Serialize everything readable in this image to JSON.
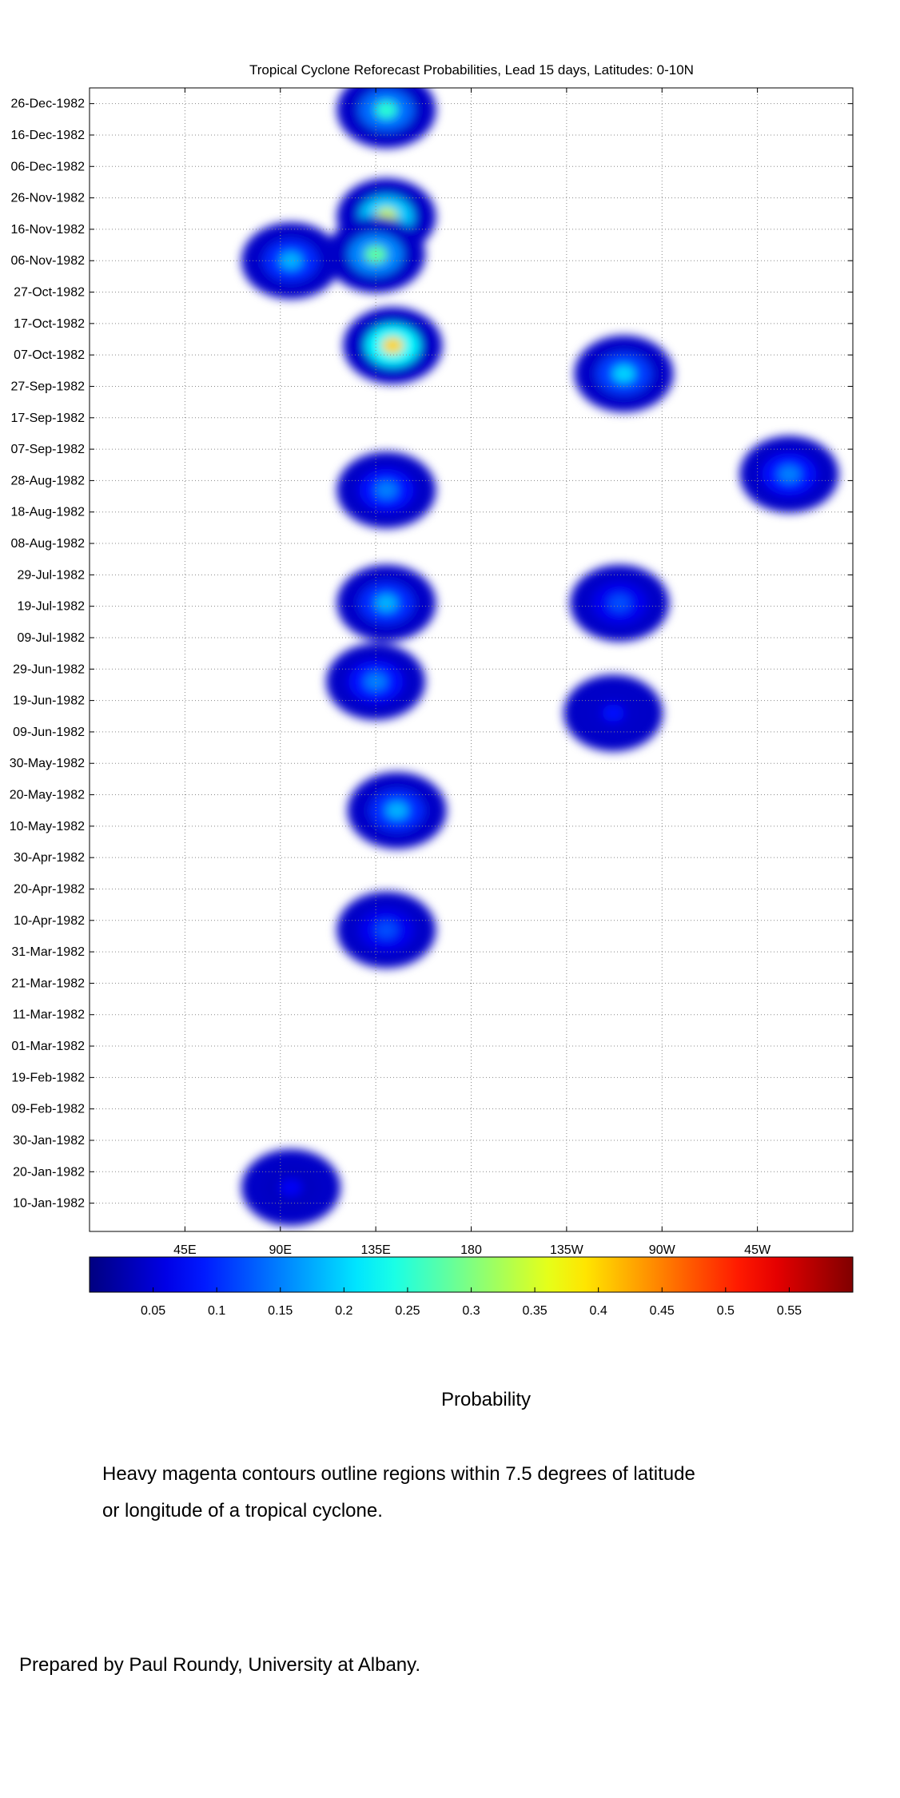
{
  "chart_data": {
    "type": "heatmap",
    "title": "Tropical Cyclone Reforecast Probabilities, Lead 15 days, Latitudes: 0-10N",
    "xlabel": "",
    "ylabel": "",
    "x_tick_labels": [
      "45E",
      "90E",
      "135E",
      "180",
      "135W",
      "90W",
      "45W"
    ],
    "y_tick_labels": [
      "26-Dec-1982",
      "16-Dec-1982",
      "06-Dec-1982",
      "26-Nov-1982",
      "16-Nov-1982",
      "06-Nov-1982",
      "27-Oct-1982",
      "17-Oct-1982",
      "07-Oct-1982",
      "27-Sep-1982",
      "17-Sep-1982",
      "07-Sep-1982",
      "28-Aug-1982",
      "18-Aug-1982",
      "08-Aug-1982",
      "29-Jul-1982",
      "19-Jul-1982",
      "09-Jul-1982",
      "29-Jun-1982",
      "19-Jun-1982",
      "09-Jun-1982",
      "30-May-1982",
      "20-May-1982",
      "10-May-1982",
      "30-Apr-1982",
      "20-Apr-1982",
      "10-Apr-1982",
      "31-Mar-1982",
      "21-Mar-1982",
      "11-Mar-1982",
      "01-Mar-1982",
      "19-Feb-1982",
      "09-Feb-1982",
      "30-Jan-1982",
      "20-Jan-1982",
      "10-Jan-1982"
    ],
    "x_range": [
      "0E",
      "360E"
    ],
    "y_range": [
      "01-Jan-1982",
      "31-Dec-1982"
    ],
    "grid": true,
    "colorbar": {
      "label": "Probability",
      "range": [
        0,
        0.6
      ],
      "tick_labels": [
        "0.05",
        "0.1",
        "0.15",
        "0.2",
        "0.25",
        "0.3",
        "0.35",
        "0.4",
        "0.45",
        "0.5",
        "0.55"
      ],
      "tick_values": [
        0.05,
        0.1,
        0.15,
        0.2,
        0.25,
        0.3,
        0.35,
        0.4,
        0.45,
        0.5,
        0.55
      ],
      "colormap": "jet"
    },
    "contour_color": "#ff33ff",
    "probability_regions": [
      {
        "lon": 140,
        "date": "1982-11-20",
        "peak": 0.35
      },
      {
        "lon": 143,
        "date": "1982-10-10",
        "peak": 0.4
      },
      {
        "lon": 140,
        "date": "1982-12-24",
        "peak": 0.25
      },
      {
        "lon": 135,
        "date": "1982-11-08",
        "peak": 0.28
      },
      {
        "lon": 95,
        "date": "1982-11-06",
        "peak": 0.18
      },
      {
        "lon": 140,
        "date": "1982-08-25",
        "peak": 0.15
      },
      {
        "lon": 140,
        "date": "1982-07-20",
        "peak": 0.18
      },
      {
        "lon": 135,
        "date": "1982-06-25",
        "peak": 0.15
      },
      {
        "lon": 145,
        "date": "1982-05-15",
        "peak": 0.18
      },
      {
        "lon": 140,
        "date": "1982-04-07",
        "peak": 0.12
      },
      {
        "lon": 252,
        "date": "1982-10-01",
        "peak": 0.2
      },
      {
        "lon": 250,
        "date": "1982-07-20",
        "peak": 0.12
      },
      {
        "lon": 247,
        "date": "1982-06-15",
        "peak": 0.08
      },
      {
        "lon": 330,
        "date": "1982-08-30",
        "peak": 0.15
      },
      {
        "lon": 95,
        "date": "1982-01-15",
        "peak": 0.07
      }
    ]
  },
  "annotations": {
    "colorbar_title": "Probability",
    "note_line1": "Heavy magenta contours outline regions within 7.5 degrees of latitude",
    "note_line2": "or longitude of a tropical cyclone.",
    "credit": "Prepared by Paul Roundy, University at Albany."
  }
}
